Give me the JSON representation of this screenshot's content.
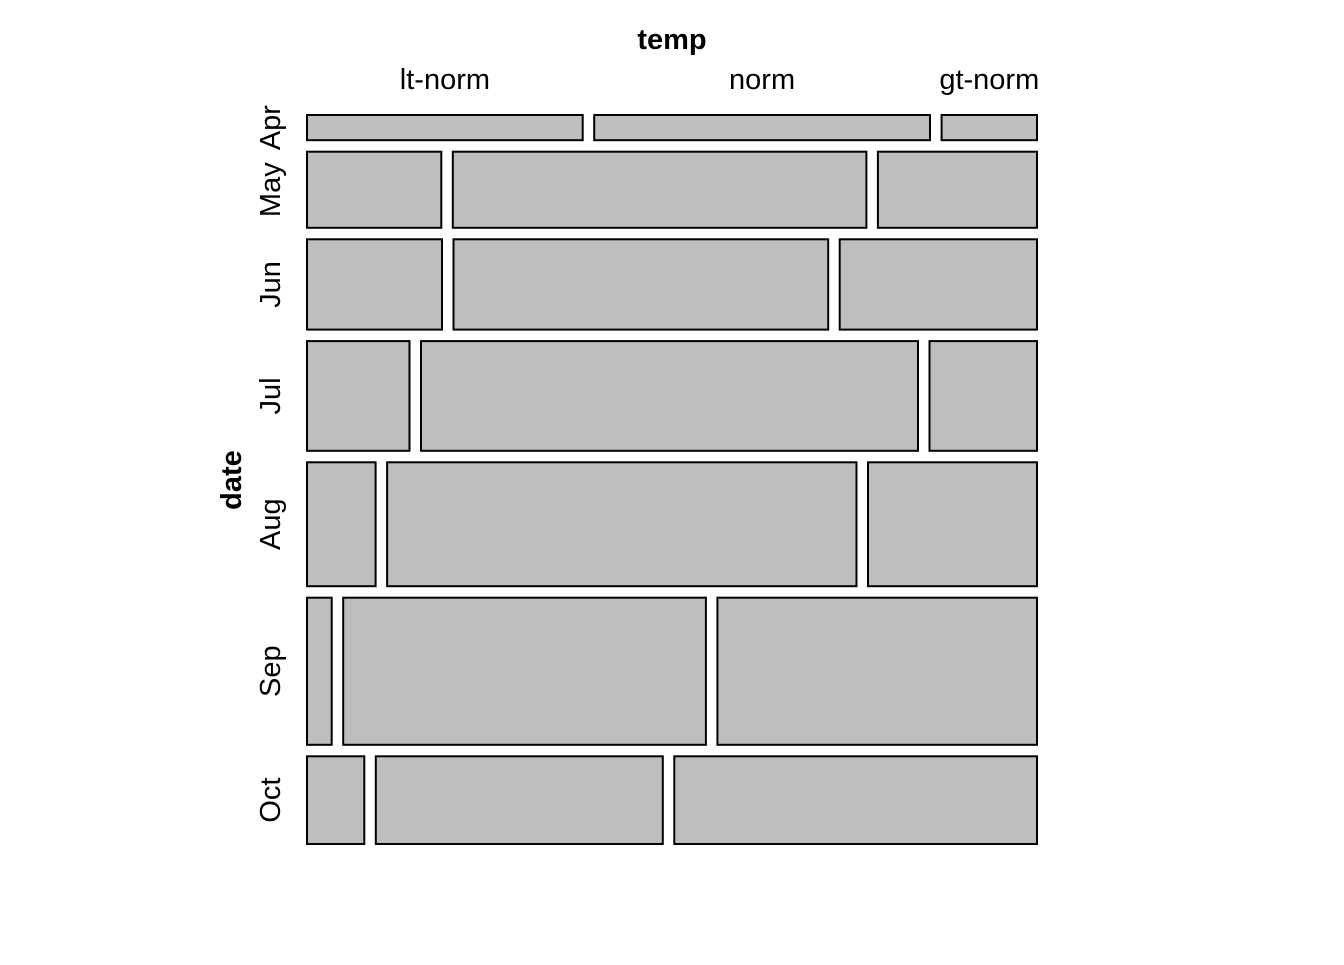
{
  "chart_data": {
    "type": "mosaic",
    "xlabel": "temp",
    "ylabel": "date",
    "x_categories": [
      "lt-norm",
      "norm",
      "gt-norm"
    ],
    "y_categories": [
      "Apr",
      "May",
      "Jun",
      "Jul",
      "Aug",
      "Sep",
      "Oct"
    ],
    "row_proportions": [
      0.039,
      0.118,
      0.14,
      0.17,
      0.192,
      0.228,
      0.136
    ],
    "cell_proportions": [
      [
        0.39,
        0.475,
        0.135
      ],
      [
        0.19,
        0.585,
        0.225
      ],
      [
        0.191,
        0.53,
        0.279
      ],
      [
        0.145,
        0.703,
        0.152
      ],
      [
        0.097,
        0.664,
        0.239
      ],
      [
        0.035,
        0.513,
        0.452
      ],
      [
        0.081,
        0.406,
        0.513
      ]
    ],
    "fill_color": "#bebebe",
    "grid": false,
    "legend": "none"
  }
}
